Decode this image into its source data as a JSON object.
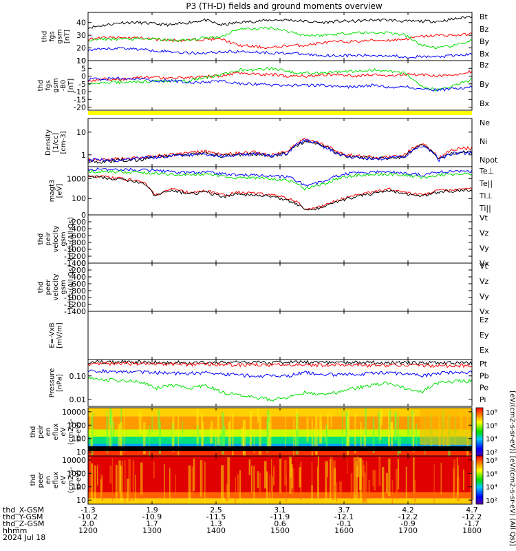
{
  "title": "P3 (TH-D) fields and ground moments overview",
  "colors": {
    "black": "#000000",
    "red": "#ff0000",
    "green": "#00e000",
    "blue": "#0000ff",
    "yellow": "#ffff00"
  },
  "chart_data": {
    "type": "line",
    "time_range_hhmm": [
      "1200",
      "1800"
    ],
    "panels": [
      {
        "id": "fgs_gsm",
        "ylabel_lines": [
          "thd",
          "fgs",
          "gsm",
          "[nT]"
        ],
        "ylim": [
          10,
          48
        ],
        "ticks": [
          "10",
          "20",
          "30",
          "40"
        ],
        "scale": "linear",
        "series": [
          {
            "name": "Bt",
            "color": "#000000",
            "values": [
              36,
              38,
              40,
              40,
              39,
              38,
              40,
              42,
              38,
              40,
              41,
              42,
              42,
              41,
              40,
              41,
              41,
              42,
              42,
              41,
              41,
              41,
              43,
              45
            ]
          },
          {
            "name": "Bz",
            "color": "#ff0000",
            "values": [
              27,
              28,
              28,
              28,
              27,
              26,
              26,
              27,
              27,
              22,
              21,
              20,
              22,
              22,
              24,
              25,
              25,
              26,
              26,
              27,
              29,
              30,
              30,
              31
            ]
          },
          {
            "name": "By",
            "color": "#00e000",
            "values": [
              26,
              27,
              27,
              27,
              27,
              26,
              26,
              28,
              29,
              35,
              35,
              36,
              33,
              30,
              30,
              31,
              32,
              32,
              32,
              30,
              22,
              20,
              22,
              26
            ]
          },
          {
            "name": "Bx",
            "color": "#0000ff",
            "values": [
              18,
              19,
              20,
              19,
              18,
              17,
              16,
              16,
              17,
              17,
              17,
              16,
              16,
              15,
              14,
              14,
              14,
              14,
              14,
              13,
              13,
              13,
              14,
              15
            ]
          }
        ]
      },
      {
        "id": "fgs_gse",
        "ylabel_lines": [
          "thd",
          "fgs",
          "gsm",
          "-B0",
          "[nT]"
        ],
        "ylim": [
          -22,
          10
        ],
        "ticks": [
          "-20",
          "-15",
          "-10",
          "-5",
          "0",
          "5",
          "10"
        ],
        "scale": "linear",
        "series": [
          {
            "name": "Bz",
            "color": "#ff0000",
            "values": [
              -3,
              -2,
              -2,
              -1,
              -1,
              -1,
              -1,
              0,
              0,
              2,
              1,
              1,
              0,
              0,
              1,
              1,
              0,
              1,
              0,
              1,
              1,
              0,
              1,
              3
            ]
          },
          {
            "name": "By",
            "color": "#00e000",
            "values": [
              -5,
              -4,
              -4,
              -4,
              -3,
              -3,
              -3,
              -1,
              1,
              4,
              4,
              5,
              3,
              2,
              2,
              3,
              3,
              4,
              3,
              2,
              -7,
              -9,
              -6,
              -2
            ]
          },
          {
            "name": "Bx",
            "color": "#0000ff",
            "values": [
              -2,
              -2,
              -1,
              -2,
              -3,
              -3,
              -4,
              -4,
              -3,
              -5,
              -5,
              -6,
              -6,
              -6,
              -6,
              -7,
              -7,
              -6,
              -7,
              -7,
              -8,
              -9,
              -8,
              -7
            ]
          }
        ]
      },
      {
        "id": "density",
        "ylabel_lines": [
          "Density",
          "[1/cc]",
          "[cm-3]"
        ],
        "ylim": [
          0.3,
          40
        ],
        "ticks": [
          "1",
          "10"
        ],
        "scale": "log",
        "series": [
          {
            "name": "Ne",
            "color": "#ff0000",
            "values": [
              0.6,
              0.6,
              0.7,
              0.7,
              0.9,
              1.0,
              1.2,
              1.4,
              1.0,
              1.2,
              1.3,
              1.0,
              1.4,
              5.0,
              3.0,
              1.2,
              0.9,
              0.8,
              0.8,
              1.0,
              3.0,
              0.7,
              1.8,
              2.0
            ]
          },
          {
            "name": "Ni",
            "color": "#000000",
            "values": [
              0.5,
              0.5,
              0.6,
              0.6,
              0.8,
              0.9,
              1.0,
              1.2,
              0.9,
              1.0,
              1.1,
              0.9,
              1.2,
              4.0,
              2.5,
              1.0,
              0.8,
              0.7,
              0.7,
              0.9,
              2.6,
              0.6,
              1.3,
              1.4
            ]
          },
          {
            "name": "Npot",
            "color": "#0000ff",
            "values": [
              0.6,
              0.6,
              0.6,
              0.7,
              0.8,
              0.9,
              1.0,
              1.1,
              0.9,
              1.0,
              1.1,
              0.9,
              1.2,
              4.5,
              2.5,
              1.0,
              0.8,
              0.7,
              0.7,
              0.9,
              2.5,
              0.6,
              1.2,
              1.2
            ]
          }
        ]
      },
      {
        "id": "temperature",
        "ylabel_lines": [
          "magt3",
          "[eV]"
        ],
        "ylim": [
          15,
          4000
        ],
        "ticks": [
          "100",
          "1000"
        ],
        "scale": "log",
        "series": [
          {
            "name": "Te⊥",
            "color": "#ff0000",
            "values": [
              1500,
              1200,
              1000,
              800,
              150,
              300,
              200,
              250,
              150,
              200,
              180,
              150,
              100,
              30,
              40,
              80,
              150,
              200,
              300,
              200,
              150,
              250,
              280,
              300
            ]
          },
          {
            "name": "Te||",
            "color": "#000000",
            "values": [
              1400,
              1100,
              900,
              700,
              130,
              260,
              170,
              210,
              120,
              170,
              150,
              130,
              80,
              25,
              35,
              70,
              120,
              170,
              260,
              170,
              120,
              220,
              240,
              260
            ]
          },
          {
            "name": "Ti⊥",
            "color": "#0000ff",
            "values": [
              3000,
              3000,
              2900,
              2800,
              2500,
              2200,
              2000,
              2200,
              1800,
              1500,
              1500,
              1400,
              1200,
              400,
              700,
              1500,
              2000,
              2200,
              2300,
              2000,
              1500,
              2200,
              2300,
              2400
            ]
          },
          {
            "name": "Ti||",
            "color": "#00e000",
            "values": [
              2300,
              2300,
              2200,
              2100,
              1900,
              1700,
              1600,
              1700,
              1300,
              1100,
              1100,
              1000,
              800,
              300,
              500,
              1000,
              1500,
              1600,
              1700,
              1500,
              1100,
              1600,
              1700,
              1800
            ]
          }
        ]
      },
      {
        "id": "ion_velocity",
        "ylabel_lines": [
          "thd",
          "peir",
          "velocity",
          "gsm",
          "km/s (All Qs)"
        ],
        "ylim": [
          -1400,
          0
        ],
        "ticks": [
          "-1400",
          "-1200",
          "-1000",
          "-800",
          "-600",
          "-400",
          "-200",
          "0"
        ],
        "scale": "linear",
        "series": [
          {
            "name": "Vt",
            "color": "#000000",
            "values": []
          },
          {
            "name": "Vz",
            "color": "#ff0000",
            "values": []
          },
          {
            "name": "Vy",
            "color": "#00e000",
            "values": []
          },
          {
            "name": "Vx",
            "color": "#0000ff",
            "values": []
          }
        ]
      },
      {
        "id": "electron_velocity",
        "ylabel_lines": [
          "thd",
          "peer",
          "velocity",
          "gsm",
          "km/s (All Qs)"
        ],
        "ylim": [
          -1400,
          0
        ],
        "ticks": [
          "-1400",
          "-1200",
          "-1000",
          "-800",
          "-600",
          "-400",
          "-200",
          "0"
        ],
        "scale": "linear",
        "series": [
          {
            "name": "Vt",
            "color": "#000000",
            "values": []
          },
          {
            "name": "Vz",
            "color": "#ff0000",
            "values": []
          },
          {
            "name": "Vy",
            "color": "#00e000",
            "values": []
          },
          {
            "name": "Vx",
            "color": "#0000ff",
            "values": []
          }
        ]
      },
      {
        "id": "efield",
        "ylabel_lines": [
          "E=-VxB",
          "[mV/m]"
        ],
        "ylim": [
          -1,
          0
        ],
        "ticks": [],
        "scale": "linear",
        "series": [
          {
            "name": "Ez",
            "color": "#ff0000",
            "values": []
          },
          {
            "name": "Ey",
            "color": "#00e000",
            "values": []
          },
          {
            "name": "Ex",
            "color": "#0000ff",
            "values": []
          }
        ]
      },
      {
        "id": "pressure",
        "ylabel_lines": [
          "Pressure",
          "[nPa]"
        ],
        "ylim": [
          0.005,
          0.5
        ],
        "ticks": [
          "0.01",
          "0.10"
        ],
        "scale": "log",
        "series": [
          {
            "name": "Pt",
            "color": "#000000",
            "values": [
              0.4,
              0.4,
              0.4,
              0.4,
              0.38,
              0.38,
              0.37,
              0.38,
              0.37,
              0.38,
              0.38,
              0.37,
              0.38,
              0.38,
              0.37,
              0.37,
              0.37,
              0.37,
              0.37,
              0.36,
              0.36,
              0.36,
              0.36,
              0.36
            ]
          },
          {
            "name": "Pb",
            "color": "#ff0000",
            "values": [
              0.33,
              0.34,
              0.34,
              0.34,
              0.32,
              0.32,
              0.31,
              0.32,
              0.31,
              0.3,
              0.3,
              0.3,
              0.3,
              0.3,
              0.29,
              0.29,
              0.29,
              0.28,
              0.28,
              0.28,
              0.28,
              0.27,
              0.28,
              0.28
            ]
          },
          {
            "name": "Pe",
            "color": "#00e000",
            "values": [
              0.08,
              0.07,
              0.06,
              0.06,
              0.03,
              0.04,
              0.03,
              0.04,
              0.02,
              0.015,
              0.012,
              0.01,
              0.012,
              0.02,
              0.015,
              0.02,
              0.03,
              0.04,
              0.05,
              0.03,
              0.02,
              0.05,
              0.06,
              0.06
            ]
          },
          {
            "name": "Pi",
            "color": "#0000ff",
            "values": [
              0.16,
              0.16,
              0.15,
              0.15,
              0.14,
              0.13,
              0.13,
              0.14,
              0.12,
              0.11,
              0.1,
              0.1,
              0.1,
              0.14,
              0.12,
              0.11,
              0.12,
              0.13,
              0.14,
              0.12,
              0.1,
              0.13,
              0.14,
              0.14
            ]
          }
        ]
      },
      {
        "id": "ion_spectrogram",
        "ylabel_lines": [
          "thd",
          "peir",
          "en",
          "eflux",
          "eV",
          "(cm2-s-",
          "sr-eV)"
        ],
        "ylim": [
          5,
          20000
        ],
        "ticks": [
          "10",
          "100",
          "1000",
          "10000"
        ],
        "scale": "log"
      },
      {
        "id": "electron_spectrogram",
        "ylabel_lines": [
          "thd",
          "peer",
          "en",
          "eflux",
          "eV",
          "(cm2-s-",
          "sr-eV)"
        ],
        "ylim": [
          5,
          20000
        ],
        "ticks": [
          "10",
          "100",
          "1000",
          "10000"
        ],
        "scale": "log"
      }
    ],
    "colorbars": [
      {
        "ticks": [
          "10²",
          "10⁴",
          "10⁶",
          "10⁸"
        ]
      },
      {
        "ticks": [
          "10²",
          "10⁴",
          "10⁶",
          "10⁸"
        ]
      }
    ],
    "colorbar_label": "[eV/(cm2-s-sr-eV)] [eV/(cm2-s-sr-eV) (All Qs)]",
    "xaxis": {
      "hhmm": [
        "1200",
        "1300",
        "1400",
        "1500",
        "1600",
        "1700",
        "1800"
      ],
      "x_gsm": [
        "-1.3",
        "1.9",
        "2.5",
        "3.1",
        "3.7",
        "4.2",
        "4.7"
      ],
      "y_gsm": [
        "-10.2",
        "-10.9",
        "-11.5",
        "-11.9",
        "-12.1",
        "-12.2",
        "-12.2"
      ],
      "z_gsm": [
        "2.0",
        "1.7",
        "1.3",
        "0.6",
        "-0.1",
        "-0.9",
        "-1.7"
      ],
      "row_labels": [
        "thd_X-GSM",
        "thd_Y-GSM",
        "thd_Z-GSM",
        "hhmm",
        "2024 Jul 18"
      ]
    }
  }
}
